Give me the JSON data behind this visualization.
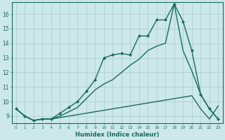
{
  "xlabel": "Humidex (Indice chaleur)",
  "background_color": "#cce8e8",
  "grid_color": "#aacccc",
  "line_color": "#1a6b5a",
  "xlim": [
    -0.5,
    23.5
  ],
  "ylim": [
    8.5,
    16.8
  ],
  "x_ticks": [
    0,
    1,
    2,
    3,
    4,
    5,
    6,
    7,
    8,
    9,
    10,
    11,
    12,
    13,
    14,
    15,
    16,
    17,
    18,
    19,
    20,
    21,
    22,
    23
  ],
  "y_ticks": [
    9,
    10,
    11,
    12,
    13,
    14,
    15,
    16
  ],
  "series": [
    {
      "x": [
        0,
        1,
        2,
        3,
        4,
        5,
        6,
        7,
        8,
        9,
        10,
        11,
        12,
        13,
        14,
        15,
        16,
        17,
        18,
        19,
        20,
        21,
        22,
        23
      ],
      "y": [
        9.5,
        9.0,
        8.7,
        8.8,
        8.8,
        8.9,
        9.0,
        9.1,
        9.2,
        9.3,
        9.4,
        9.5,
        9.6,
        9.7,
        9.8,
        9.9,
        10.0,
        10.1,
        10.2,
        10.3,
        10.4,
        9.5,
        8.8,
        9.7
      ],
      "marker": false,
      "lw": 1.0
    },
    {
      "x": [
        0,
        1,
        2,
        3,
        4,
        5,
        6,
        7,
        8,
        9,
        10,
        11,
        12,
        13,
        14,
        15,
        16,
        17,
        18,
        19,
        20,
        21,
        22,
        23
      ],
      "y": [
        9.5,
        9.0,
        8.7,
        8.8,
        8.8,
        9.0,
        9.3,
        9.6,
        10.2,
        10.8,
        11.2,
        11.5,
        12.0,
        12.5,
        12.9,
        13.5,
        13.8,
        14.0,
        16.7,
        13.5,
        12.1,
        10.5,
        9.5,
        8.8
      ],
      "marker": false,
      "lw": 1.0
    },
    {
      "x": [
        0,
        1,
        2,
        3,
        4,
        5,
        6,
        7,
        8,
        9,
        10,
        11,
        12,
        13,
        14,
        15,
        16,
        17,
        18,
        19,
        20,
        21,
        22,
        23
      ],
      "y": [
        9.5,
        9.0,
        8.7,
        8.8,
        8.8,
        9.2,
        9.6,
        10.0,
        10.7,
        11.5,
        13.0,
        13.2,
        13.3,
        13.2,
        14.5,
        14.5,
        15.6,
        15.6,
        16.7,
        15.5,
        13.5,
        10.5,
        9.5,
        8.8
      ],
      "marker": true,
      "lw": 1.0
    }
  ]
}
